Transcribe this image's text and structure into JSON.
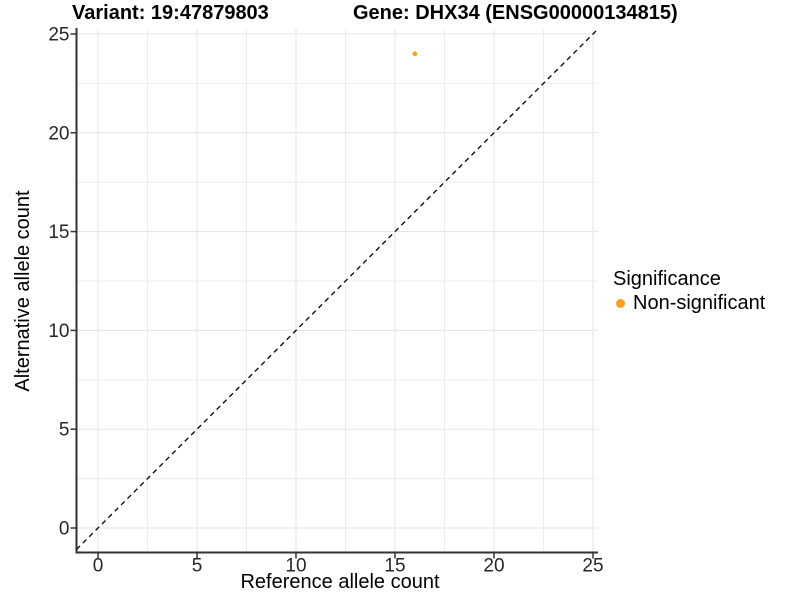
{
  "title": {
    "variant": "Variant: 19:47879803",
    "gene": "Gene: DHX34 (ENSG00000134815)"
  },
  "legend": {
    "title": "Significance",
    "items": [
      {
        "label": "Non-significant",
        "color": "#F9A11E",
        "marker": "circle-icon"
      }
    ]
  },
  "colors": {
    "background": "#FFFFFF",
    "grid_major": "#E3E3E3",
    "grid_minor": "#EDEDED",
    "axis_line": "#333333",
    "tick_mark": "#333333",
    "tick_text": "#262626",
    "reference_line": "#000000",
    "point": "#F9A11E"
  },
  "chart_data": {
    "type": "scatter",
    "title": "Variant: 19:47879803    Gene: DHX34 (ENSG00000134815)",
    "xlabel": "Reference allele count",
    "ylabel": "Alternative allele count",
    "xticks": [
      0,
      5,
      10,
      15,
      20,
      25
    ],
    "yticks": [
      0,
      5,
      10,
      15,
      20,
      25
    ],
    "xlim": [
      -1.1,
      25.25
    ],
    "ylim": [
      -1.24,
      25.25
    ],
    "grid": "major+minor",
    "legend_position": "right",
    "series": [
      {
        "name": "Non-significant",
        "color": "#F9A11E",
        "points": [
          {
            "x": 16,
            "y": 24
          }
        ]
      }
    ],
    "reference_line": {
      "type": "y=x",
      "style": "dashed",
      "color": "#000000"
    }
  }
}
